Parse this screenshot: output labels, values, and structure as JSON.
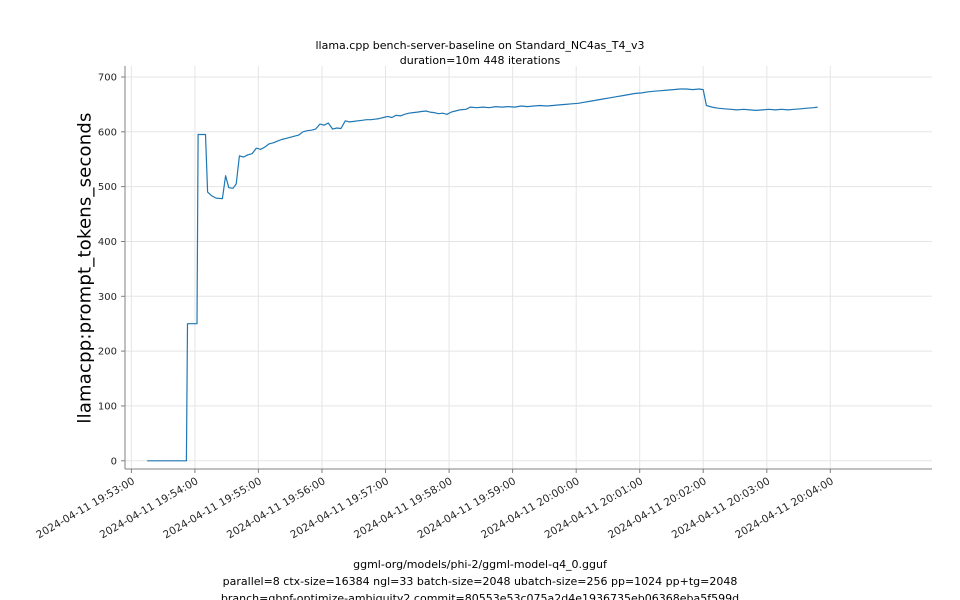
{
  "title": {
    "line1": "llama.cpp bench-server-baseline on Standard_NC4as_T4_v3",
    "line2": "duration=10m 448 iterations"
  },
  "footer": {
    "line1": "ggml-org/models/phi-2/ggml-model-q4_0.gguf",
    "line2": "parallel=8 ctx-size=16384 ngl=33 batch-size=2048 ubatch-size=256 pp=1024 pp+tg=2048",
    "line3": "branch=gbnf-optimize-ambiguity2 commit=80553e53c075a2d4e1936735eb06368eba5f599d"
  },
  "chart_data": {
    "type": "line",
    "title": "llama.cpp bench-server-baseline on Standard_NC4as_T4_v3",
    "subtitle": "duration=10m 448 iterations",
    "ylabel": "llamacpp:prompt_tokens_seconds",
    "xlabel": "",
    "x_unit": "seconds since 2024-04-11 19:53:00",
    "xlim": [
      -6,
      756
    ],
    "ylim": [
      -15,
      720
    ],
    "grid": true,
    "legend": false,
    "line_color": "#1f77b4",
    "grid_color": "#e5e5e5",
    "spine_color": "#808080",
    "tick_text_color": "#262626",
    "y_ticks": [
      0,
      100,
      200,
      300,
      400,
      500,
      600,
      700
    ],
    "x_ticks": [
      0,
      60,
      120,
      180,
      240,
      300,
      360,
      420,
      480,
      540,
      600,
      660
    ],
    "x_tick_labels": [
      "2024-04-11 19:53:00",
      "2024-04-11 19:54:00",
      "2024-04-11 19:55:00",
      "2024-04-11 19:56:00",
      "2024-04-11 19:57:00",
      "2024-04-11 19:58:00",
      "2024-04-11 19:59:00",
      "2024-04-11 20:00:00",
      "2024-04-11 20:01:00",
      "2024-04-11 20:02:00",
      "2024-04-11 20:03:00",
      "2024-04-11 20:04:00"
    ],
    "series": [
      {
        "name": "llamacpp:prompt_tokens_seconds",
        "x": [
          15,
          30,
          45,
          52,
          53,
          60,
          62,
          63,
          70,
          72,
          76,
          80,
          86,
          89,
          92,
          96,
          99,
          102,
          106,
          110,
          114,
          118,
          122,
          126,
          130,
          134,
          138,
          142,
          146,
          150,
          154,
          158,
          162,
          166,
          170,
          174,
          178,
          182,
          186,
          190,
          194,
          198,
          202,
          206,
          210,
          214,
          218,
          222,
          226,
          230,
          234,
          238,
          242,
          246,
          250,
          254,
          258,
          262,
          266,
          270,
          274,
          278,
          282,
          286,
          290,
          294,
          298,
          302,
          306,
          310,
          316,
          320,
          326,
          332,
          338,
          344,
          350,
          356,
          362,
          368,
          374,
          380,
          386,
          392,
          398,
          404,
          410,
          416,
          422,
          428,
          434,
          440,
          446,
          452,
          458,
          464,
          470,
          476,
          482,
          488,
          494,
          500,
          506,
          512,
          518,
          524,
          530,
          536,
          540,
          543,
          548,
          554,
          560,
          566,
          572,
          578,
          584,
          590,
          596,
          602,
          608,
          614,
          620,
          626,
          632,
          638,
          644,
          648
        ],
        "y": [
          0,
          0,
          0,
          0,
          250,
          250,
          250,
          595,
          595,
          490,
          483,
          479,
          478,
          520,
          498,
          497,
          505,
          556,
          554,
          558,
          560,
          570,
          568,
          572,
          578,
          580,
          583,
          586,
          588,
          590,
          592,
          594,
          600,
          602,
          603,
          605,
          614,
          612,
          616,
          605,
          607,
          606,
          620,
          618,
          619,
          620,
          621,
          622,
          622,
          623,
          624,
          626,
          628,
          626,
          630,
          629,
          632,
          634,
          635,
          636,
          637,
          638,
          636,
          635,
          633,
          634,
          632,
          636,
          638,
          640,
          641,
          645,
          644,
          645,
          644,
          646,
          645,
          646,
          645,
          647,
          646,
          647,
          648,
          647,
          648,
          649,
          650,
          651,
          652,
          654,
          656,
          658,
          660,
          662,
          664,
          666,
          668,
          670,
          671,
          673,
          674,
          675,
          676,
          677,
          678,
          678,
          677,
          678,
          677,
          648,
          645,
          643,
          642,
          641,
          640,
          641,
          640,
          639,
          640,
          641,
          640,
          641,
          640,
          641,
          642,
          643,
          644,
          645
        ]
      }
    ]
  }
}
